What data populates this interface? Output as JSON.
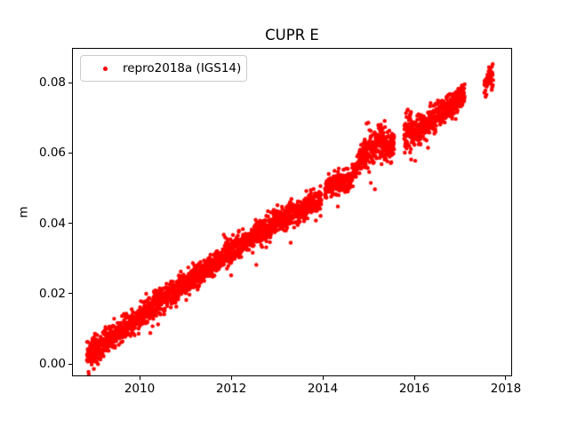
{
  "chart_data": {
    "type": "scatter",
    "title": "CUPR E",
    "xlabel": "",
    "ylabel": "m",
    "xlim": [
      2008.524,
      2018.136
    ],
    "ylim": [
      -0.0035,
      0.0899
    ],
    "grid": false,
    "background_color": "#ffffff",
    "axis_color": "#000000",
    "text_color": "#000000",
    "x_ticks": [
      {
        "value": 2010,
        "label": "2010"
      },
      {
        "value": 2012,
        "label": "2012"
      },
      {
        "value": 2014,
        "label": "2014"
      },
      {
        "value": 2016,
        "label": "2016"
      },
      {
        "value": 2018,
        "label": "2018"
      }
    ],
    "y_ticks": [
      {
        "value": 0.0,
        "label": "0.00"
      },
      {
        "value": 0.02,
        "label": "0.02"
      },
      {
        "value": 0.04,
        "label": "0.04"
      },
      {
        "value": 0.06,
        "label": "0.06"
      },
      {
        "value": 0.08,
        "label": "0.08"
      }
    ],
    "legend": {
      "position": "upper left",
      "border_color": "#cccccc",
      "entries": [
        {
          "label": "repro2018a (IGS14)",
          "color": "#ff0000",
          "marker": "dot"
        }
      ]
    },
    "series": [
      {
        "name": "repro2018a (IGS14)",
        "color": "#ff0000",
        "marker": "dot",
        "marker_radius_px": 2.2,
        "x_unit": "year",
        "y_unit": "m",
        "trend_summary": "near-linear rise ~0.009 m/yr from 0.002 m at 2008.9 to 0.077 m at 2017.1, offset clusters 2014-2016, isolated cluster 2017.5-2017.7 at 0.077-0.085 m",
        "segment_format": [
          "t_start",
          "t_end",
          "v_start",
          "v_end",
          "n_points",
          "noise_sigma"
        ],
        "segments": [
          [
            2008.85,
            2009.1,
            0.0025,
            0.004,
            110,
            0.002
          ],
          [
            2009.1,
            2010.0,
            0.0047,
            0.0135,
            320,
            0.0017
          ],
          [
            2010.0,
            2011.0,
            0.0135,
            0.0228,
            360,
            0.0018
          ],
          [
            2011.0,
            2012.0,
            0.0228,
            0.0322,
            360,
            0.0018
          ],
          [
            2012.0,
            2013.0,
            0.0322,
            0.0405,
            360,
            0.0018
          ],
          [
            2013.0,
            2013.97,
            0.0405,
            0.0465,
            350,
            0.0017
          ],
          [
            2014.05,
            2014.58,
            0.05,
            0.0525,
            190,
            0.0016
          ],
          [
            2014.58,
            2014.77,
            0.052,
            0.0565,
            60,
            0.0013
          ],
          [
            2014.78,
            2015.2,
            0.0575,
            0.063,
            160,
            0.0022
          ],
          [
            2015.2,
            2015.56,
            0.063,
            0.0615,
            140,
            0.0024
          ],
          [
            2015.78,
            2015.95,
            0.0655,
            0.066,
            70,
            0.0028
          ],
          [
            2015.95,
            2016.15,
            0.0655,
            0.0665,
            80,
            0.0019
          ],
          [
            2016.15,
            2017.1,
            0.067,
            0.0765,
            350,
            0.0017
          ],
          [
            2017.53,
            2017.6,
            0.0795,
            0.0795,
            22,
            0.0015
          ],
          [
            2017.62,
            2017.72,
            0.0815,
            0.0815,
            28,
            0.0017
          ]
        ],
        "outliers": [
          [
            2009.35,
            0.0105
          ],
          [
            2010.55,
            0.0152
          ],
          [
            2012.0,
            0.0252
          ],
          [
            2012.55,
            0.0282
          ],
          [
            2013.3,
            0.0345
          ],
          [
            2013.85,
            0.0408
          ],
          [
            2014.33,
            0.0448
          ],
          [
            2015.05,
            0.0515
          ],
          [
            2015.14,
            0.0497
          ],
          [
            2015.5,
            0.0574
          ],
          [
            2016.02,
            0.0578
          ],
          [
            2016.3,
            0.0615
          ]
        ]
      }
    ]
  }
}
